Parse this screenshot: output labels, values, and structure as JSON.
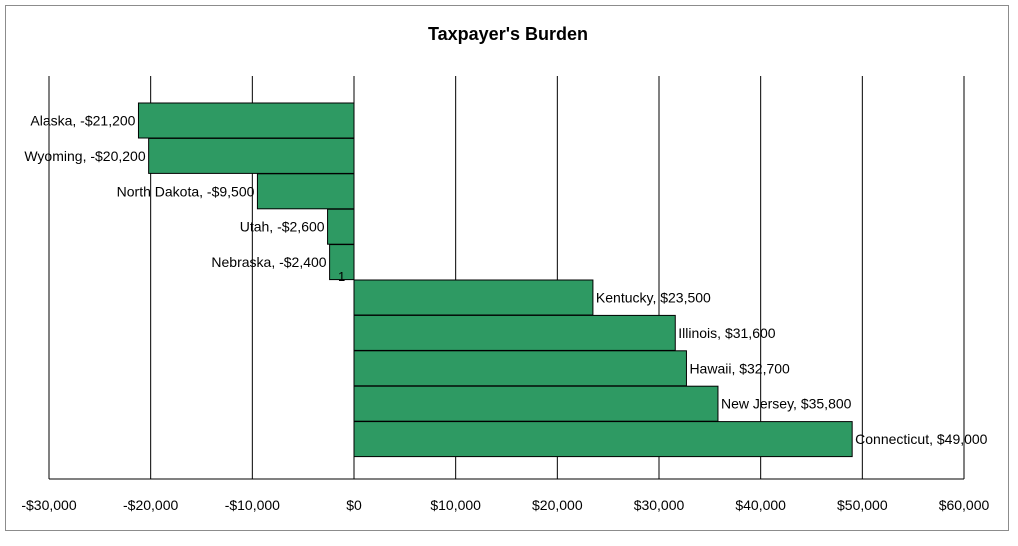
{
  "chart_data": {
    "type": "bar",
    "orientation": "horizontal",
    "title": "Taxpayer's Burden",
    "xlabel": "",
    "ylabel": "",
    "xlim": [
      -30000,
      60000
    ],
    "x_ticks": [
      -30000,
      -20000,
      -10000,
      0,
      10000,
      20000,
      30000,
      40000,
      50000,
      60000
    ],
    "x_tick_labels": [
      "-$30,000",
      "-$20,000",
      "-$10,000",
      "$0",
      "$10,000",
      "$20,000",
      "$30,000",
      "$40,000",
      "$50,000",
      "$60,000"
    ],
    "categories": [
      "Alaska",
      "Wyoming",
      "North Dakota",
      "Utah",
      "Nebraska",
      "Kentucky",
      "Illinois",
      "Hawaii",
      "New Jersey",
      "Connecticut"
    ],
    "values": [
      -21200,
      -20200,
      -9500,
      -2600,
      -2400,
      23500,
      31600,
      32700,
      35800,
      49000
    ],
    "data_labels": [
      "Alaska, -$21,200",
      "Wyoming, -$20,200",
      "North Dakota, -$9,500",
      "Utah, -$2,600",
      "Nebraska, -$2,400",
      "Kentucky, $23,500",
      "Illinois, $31,600",
      "Hawaii, $32,700",
      "New Jersey, $35,800",
      "Connecticut, $49,000"
    ],
    "category_axis_label": "1",
    "grid": true,
    "legend": "none",
    "bar_color": "#2e9a63",
    "bar_edge_color": "#000000",
    "grid_color": "#000000"
  }
}
